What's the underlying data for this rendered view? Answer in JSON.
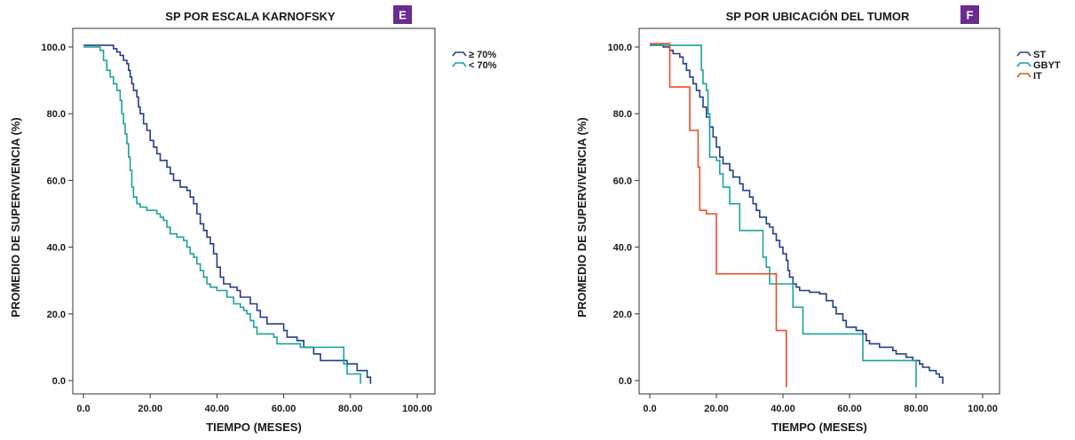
{
  "colors": {
    "badge": "#6a2c91",
    "axis": "#333333"
  },
  "chart_data": [
    {
      "type": "line",
      "step": true,
      "title": "SP POR ESCALA KARNOFSKY",
      "badge": "E",
      "xlabel": "TIEMPO (MESES)",
      "ylabel": "PROMEDIO DE SUPERVIVENCIA (%)",
      "xlim": [
        0,
        100
      ],
      "ylim": [
        0,
        100
      ],
      "xticks": [
        "0.0",
        "20.00",
        "40.00",
        "60.00",
        "80.00",
        "100.00"
      ],
      "yticks": [
        "0.0",
        "20.0",
        "40.0",
        "60.0",
        "80.0",
        "100.0"
      ],
      "grid": false,
      "legend_position": "top-right",
      "series": [
        {
          "name": "≥ 70%",
          "color": "#233e8b",
          "points": [
            [
              0,
              100.5
            ],
            [
              8,
              100.5
            ],
            [
              9,
              99.5
            ],
            [
              10,
              98.5
            ],
            [
              11,
              97.5
            ],
            [
              12,
              96
            ],
            [
              13,
              95
            ],
            [
              13.5,
              93
            ],
            [
              14,
              91
            ],
            [
              14.5,
              89
            ],
            [
              15,
              87
            ],
            [
              16,
              85
            ],
            [
              16.5,
              82
            ],
            [
              17,
              80
            ],
            [
              18,
              77
            ],
            [
              19,
              75
            ],
            [
              20,
              72
            ],
            [
              21,
              70
            ],
            [
              22,
              68
            ],
            [
              23,
              66
            ],
            [
              25,
              64
            ],
            [
              26,
              62
            ],
            [
              27,
              60
            ],
            [
              29,
              58
            ],
            [
              31,
              57
            ],
            [
              32,
              55
            ],
            [
              33,
              53
            ],
            [
              34,
              50
            ],
            [
              35,
              47
            ],
            [
              36,
              45
            ],
            [
              37,
              43
            ],
            [
              38,
              41
            ],
            [
              39,
              38
            ],
            [
              40,
              34
            ],
            [
              41,
              31
            ],
            [
              42,
              29
            ],
            [
              44,
              28
            ],
            [
              46,
              27
            ],
            [
              47,
              25
            ],
            [
              50,
              23
            ],
            [
              52,
              21
            ],
            [
              53,
              19
            ],
            [
              55,
              17
            ],
            [
              60,
              15
            ],
            [
              61,
              13
            ],
            [
              64,
              12
            ],
            [
              66,
              10
            ],
            [
              69,
              8
            ],
            [
              71,
              6
            ],
            [
              79,
              5
            ],
            [
              82,
              3
            ],
            [
              85,
              1
            ],
            [
              86,
              -1
            ]
          ]
        },
        {
          "name": "< 70%",
          "color": "#1aa39a",
          "points": [
            [
              0,
              100
            ],
            [
              4,
              100
            ],
            [
              5,
              99
            ],
            [
              6,
              96
            ],
            [
              7,
              93
            ],
            [
              8,
              91
            ],
            [
              9,
              89
            ],
            [
              10,
              87
            ],
            [
              11,
              84
            ],
            [
              11.5,
              80
            ],
            [
              12,
              77
            ],
            [
              12.5,
              74
            ],
            [
              13,
              71
            ],
            [
              13.5,
              67
            ],
            [
              14,
              63
            ],
            [
              14.5,
              58
            ],
            [
              15,
              55
            ],
            [
              16,
              53
            ],
            [
              17,
              52
            ],
            [
              19,
              51
            ],
            [
              22,
              50
            ],
            [
              23,
              49
            ],
            [
              24,
              48
            ],
            [
              25,
              46
            ],
            [
              26,
              44
            ],
            [
              28,
              43
            ],
            [
              30,
              42
            ],
            [
              31,
              40
            ],
            [
              32,
              38
            ],
            [
              33,
              37
            ],
            [
              34,
              35
            ],
            [
              35,
              33
            ],
            [
              36,
              31
            ],
            [
              37,
              29
            ],
            [
              38,
              28
            ],
            [
              40,
              27
            ],
            [
              43,
              25
            ],
            [
              45,
              23
            ],
            [
              47,
              22
            ],
            [
              48,
              21
            ],
            [
              49,
              20
            ],
            [
              50,
              18
            ],
            [
              51,
              16
            ],
            [
              52,
              14
            ],
            [
              57,
              13
            ],
            [
              58,
              11
            ],
            [
              65,
              10
            ],
            [
              76,
              10
            ],
            [
              78,
              5
            ],
            [
              79,
              2
            ],
            [
              82,
              2
            ],
            [
              83,
              -1
            ]
          ]
        }
      ]
    },
    {
      "type": "line",
      "step": true,
      "title": "SP POR UBICACIÓN DEL TUMOR",
      "badge": "F",
      "xlabel": "TIEMPO (MESES)",
      "ylabel": "PROMEDIO DE SUPERVIVENCIA (%)",
      "xlim": [
        0,
        100
      ],
      "ylim": [
        0,
        100
      ],
      "xticks": [
        "0.0",
        "20.00",
        "40.00",
        "60.00",
        "80.00",
        "100.00"
      ],
      "yticks": [
        "0.0",
        "20.0",
        "40.0",
        "60.0",
        "80.0",
        "100.0"
      ],
      "grid": false,
      "legend_position": "top-right",
      "series": [
        {
          "name": "ST",
          "color": "#233e8b",
          "points": [
            [
              0,
              100.5
            ],
            [
              4,
              100
            ],
            [
              6,
              99
            ],
            [
              7,
              98
            ],
            [
              9,
              97
            ],
            [
              10,
              95
            ],
            [
              11,
              93
            ],
            [
              12,
              91
            ],
            [
              13,
              89
            ],
            [
              14,
              87
            ],
            [
              15,
              85
            ],
            [
              16,
              82
            ],
            [
              17,
              79
            ],
            [
              18,
              76
            ],
            [
              19,
              73
            ],
            [
              20,
              70
            ],
            [
              21,
              67
            ],
            [
              22,
              65
            ],
            [
              24,
              63
            ],
            [
              25,
              61
            ],
            [
              27,
              59
            ],
            [
              28,
              57
            ],
            [
              30,
              55
            ],
            [
              31,
              53
            ],
            [
              32,
              51
            ],
            [
              33,
              49
            ],
            [
              35,
              47
            ],
            [
              36,
              46
            ],
            [
              37,
              44
            ],
            [
              38,
              42
            ],
            [
              39,
              40
            ],
            [
              40,
              38
            ],
            [
              41,
              36
            ],
            [
              41.5,
              33
            ],
            [
              42,
              31
            ],
            [
              43,
              29
            ],
            [
              44,
              28
            ],
            [
              45,
              27
            ],
            [
              48,
              26.5
            ],
            [
              51,
              26
            ],
            [
              53,
              24
            ],
            [
              55,
              22
            ],
            [
              56,
              20
            ],
            [
              58,
              18
            ],
            [
              59,
              16
            ],
            [
              62,
              15
            ],
            [
              64,
              14
            ],
            [
              65,
              12
            ],
            [
              66,
              11
            ],
            [
              69,
              10
            ],
            [
              73,
              9
            ],
            [
              74,
              8
            ],
            [
              77,
              7
            ],
            [
              79,
              6
            ],
            [
              81,
              5
            ],
            [
              82,
              4
            ],
            [
              84,
              3
            ],
            [
              86,
              2
            ],
            [
              87,
              1
            ],
            [
              88,
              -1
            ]
          ]
        },
        {
          "name": "GBYT",
          "color": "#1aa39a",
          "points": [
            [
              0,
              100.5
            ],
            [
              15,
              100.5
            ],
            [
              15.5,
              93
            ],
            [
              16,
              89
            ],
            [
              17,
              87
            ],
            [
              17.5,
              80
            ],
            [
              18,
              67
            ],
            [
              20,
              66
            ],
            [
              21,
              62
            ],
            [
              22,
              58
            ],
            [
              24,
              53
            ],
            [
              27,
              45
            ],
            [
              33,
              45
            ],
            [
              34,
              37
            ],
            [
              35,
              34
            ],
            [
              36,
              29
            ],
            [
              42,
              29
            ],
            [
              43,
              22
            ],
            [
              45,
              22
            ],
            [
              46,
              14
            ],
            [
              63,
              14
            ],
            [
              64,
              6
            ],
            [
              79,
              6
            ],
            [
              80,
              -2
            ]
          ]
        },
        {
          "name": "IT",
          "color": "#e94e29",
          "points": [
            [
              0,
              101
            ],
            [
              5,
              101
            ],
            [
              6,
              88
            ],
            [
              11,
              88
            ],
            [
              12,
              75
            ],
            [
              14,
              75
            ],
            [
              14.5,
              64
            ],
            [
              15,
              51
            ],
            [
              17,
              50
            ],
            [
              19,
              50
            ],
            [
              20,
              32
            ],
            [
              37,
              32
            ],
            [
              38,
              15
            ],
            [
              40,
              15
            ],
            [
              41,
              -2
            ]
          ]
        }
      ]
    }
  ]
}
